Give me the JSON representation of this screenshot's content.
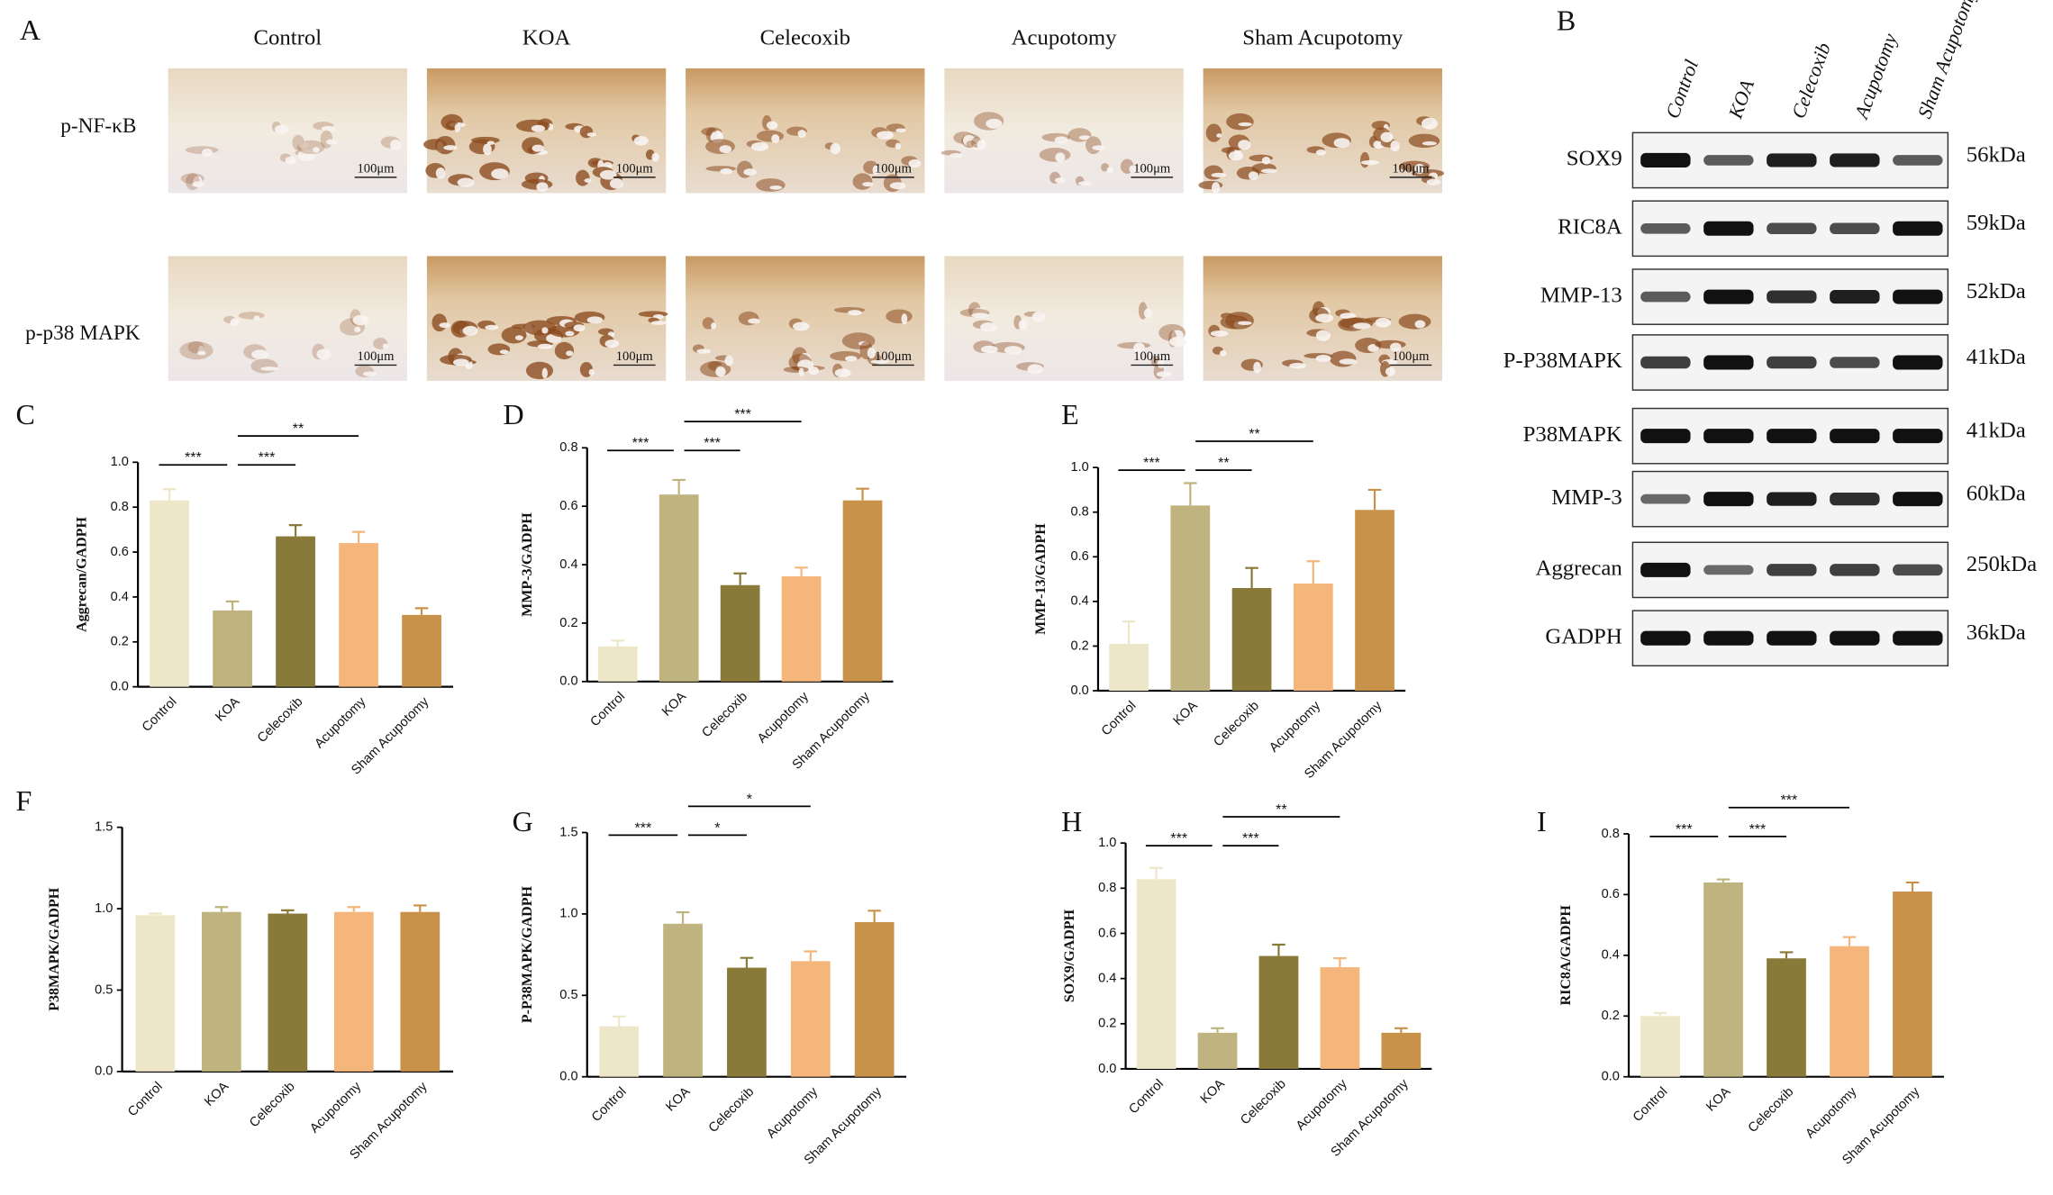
{
  "histology": {
    "label": "A",
    "groups": [
      "Control",
      "KOA",
      "Celecoxib",
      "Acupotomy",
      "Sham Acupotomy"
    ],
    "stains": [
      "p-NF-κB",
      "p-p38  MAPK"
    ],
    "scale_bar": "100μm"
  },
  "blot": {
    "label": "B",
    "lanes": [
      "Control",
      "KOA",
      "Celecoxib",
      "Acupotomy",
      "Sham Acupotomy"
    ],
    "proteins": [
      {
        "name": "SOX9",
        "size": "56kDa"
      },
      {
        "name": "RIC8A",
        "size": "59kDa"
      },
      {
        "name": "MMP-13",
        "size": "52kDa"
      },
      {
        "name": "P-P38MAPK",
        "size": "41kDa"
      },
      {
        "name": "P38MAPK",
        "size": "41kDa"
      },
      {
        "name": "MMP-3",
        "size": "60kDa"
      },
      {
        "name": "Aggrecan",
        "size": "250kDa"
      },
      {
        "name": "GADPH",
        "size": "36kDa"
      }
    ]
  },
  "chart_data": [
    {
      "type": "bar",
      "panel": "C",
      "ylabel": "Aggrecan/GADPH",
      "categories": [
        "Control",
        "KOA",
        "Celecoxib",
        "Acupotomy",
        "Sham Acupotomy"
      ],
      "colors": [
        "#ede6c8",
        "#bfb47f",
        "#8a7a3a",
        "#f4b67a",
        "#c8924a"
      ],
      "values": [
        0.83,
        0.34,
        0.67,
        0.64,
        0.32
      ],
      "errors": [
        0.05,
        0.04,
        0.05,
        0.05,
        0.03
      ],
      "ylim": [
        0,
        1
      ],
      "yticks": [
        {
          "value": 0,
          "label": "0.0"
        },
        0.2,
        0.4,
        0.6,
        0.8,
        {
          "value": 1,
          "label": "1.0"
        }
      ],
      "annotations": [
        {
          "text": "***",
          "between": [
            "Control",
            "KOA"
          ]
        },
        {
          "text": "***",
          "between": [
            "KOA",
            "Celecoxib"
          ]
        },
        {
          "text": "**",
          "between": [
            "KOA",
            "Acupotomy"
          ]
        }
      ]
    },
    {
      "type": "bar",
      "panel": "D",
      "ylabel": "MMP-3/GADPH",
      "categories": [
        "Control",
        "KOA",
        "Celecoxib",
        "Acupotomy",
        "Sham Acupotomy"
      ],
      "colors": [
        "#ede6c8",
        "#bfb47f",
        "#8a7a3a",
        "#f4b67a",
        "#c8924a"
      ],
      "values": [
        0.12,
        0.64,
        0.33,
        0.36,
        0.62
      ],
      "errors": [
        0.02,
        0.05,
        0.04,
        0.03,
        0.04
      ],
      "ylim": [
        0,
        0.8
      ],
      "yticks": [
        {
          "value": 0,
          "label": "0.0"
        },
        0.2,
        0.4,
        0.6,
        0.8
      ],
      "annotations": [
        {
          "text": "***",
          "between": [
            "Control",
            "KOA"
          ]
        },
        {
          "text": "***",
          "between": [
            "KOA",
            "Celecoxib"
          ]
        },
        {
          "text": "***",
          "between": [
            "KOA",
            "Acupotomy"
          ]
        }
      ]
    },
    {
      "type": "bar",
      "panel": "E",
      "ylabel": "MMP-13/GADPH",
      "categories": [
        "Control",
        "KOA",
        "Celecoxib",
        "Acupotomy",
        "Sham Acupotomy"
      ],
      "colors": [
        "#ede6c8",
        "#bfb47f",
        "#8a7a3a",
        "#f4b67a",
        "#c8924a"
      ],
      "values": [
        0.21,
        0.83,
        0.46,
        0.48,
        0.81
      ],
      "errors": [
        0.1,
        0.1,
        0.09,
        0.1,
        0.09
      ],
      "ylim": [
        0,
        1
      ],
      "yticks": [
        {
          "value": 0,
          "label": "0.0"
        },
        0.2,
        0.4,
        0.6,
        0.8,
        {
          "value": 1,
          "label": "1.0"
        }
      ],
      "annotations": [
        {
          "text": "***",
          "between": [
            "Control",
            "KOA"
          ]
        },
        {
          "text": "**",
          "between": [
            "KOA",
            "Celecoxib"
          ]
        },
        {
          "text": "**",
          "between": [
            "KOA",
            "Acupotomy"
          ]
        }
      ]
    },
    {
      "type": "bar",
      "panel": "F",
      "ylabel": "P38MAPK/GADPH",
      "categories": [
        "Control",
        "KOA",
        "Celecoxib",
        "Acupotomy",
        "Sham Acupotomy"
      ],
      "colors": [
        "#ede6c8",
        "#bfb47f",
        "#8a7a3a",
        "#f4b67a",
        "#c8924a"
      ],
      "values": [
        0.96,
        0.98,
        0.97,
        0.98,
        0.98
      ],
      "errors": [
        0.01,
        0.03,
        0.02,
        0.03,
        0.04
      ],
      "ylim": [
        0,
        1.5
      ],
      "yticks": [
        {
          "value": 0,
          "label": "0.0"
        },
        0.5,
        {
          "value": 1,
          "label": "1.0"
        },
        1.5
      ],
      "annotations": []
    },
    {
      "type": "bar",
      "panel": "G",
      "ylabel": "P-P38MAPK/GADPH",
      "categories": [
        "Control",
        "KOA",
        "Celecoxib",
        "Acupotomy",
        "Sham Acupotomy"
      ],
      "colors": [
        "#ede6c8",
        "#bfb47f",
        "#8a7a3a",
        "#f4b67a",
        "#c8924a"
      ],
      "values": [
        0.31,
        0.94,
        0.67,
        0.71,
        0.95
      ],
      "errors": [
        0.06,
        0.07,
        0.06,
        0.06,
        0.07
      ],
      "ylim": [
        0,
        1.5
      ],
      "yticks": [
        {
          "value": 0,
          "label": "0.0"
        },
        0.5,
        {
          "value": 1,
          "label": "1.0"
        },
        1.5
      ],
      "annotations": [
        {
          "text": "***",
          "between": [
            "Control",
            "KOA"
          ]
        },
        {
          "text": "*",
          "between": [
            "KOA",
            "Celecoxib"
          ]
        },
        {
          "text": "*",
          "between": [
            "KOA",
            "Acupotomy"
          ]
        }
      ]
    },
    {
      "type": "bar",
      "panel": "H",
      "ylabel": "SOX9/GADPH",
      "categories": [
        "Control",
        "KOA",
        "Celecoxib",
        "Acupotomy",
        "Sham Acupotomy"
      ],
      "colors": [
        "#ede6c8",
        "#bfb47f",
        "#8a7a3a",
        "#f4b67a",
        "#c8924a"
      ],
      "values": [
        0.84,
        0.16,
        0.5,
        0.45,
        0.16
      ],
      "errors": [
        0.05,
        0.02,
        0.05,
        0.04,
        0.02
      ],
      "ylim": [
        0,
        1
      ],
      "yticks": [
        {
          "value": 0,
          "label": "0.0"
        },
        0.2,
        0.4,
        0.6,
        0.8,
        {
          "value": 1,
          "label": "1.0"
        }
      ],
      "annotations": [
        {
          "text": "***",
          "between": [
            "Control",
            "KOA"
          ]
        },
        {
          "text": "***",
          "between": [
            "KOA",
            "Celecoxib"
          ]
        },
        {
          "text": "**",
          "between": [
            "KOA",
            "Acupotomy"
          ]
        }
      ]
    },
    {
      "type": "bar",
      "panel": "I",
      "ylabel": "RIC8A/GADPH",
      "categories": [
        "Control",
        "KOA",
        "Celecoxib",
        "Acupotomy",
        "Sham Acupotomy"
      ],
      "colors": [
        "#ede6c8",
        "#bfb47f",
        "#8a7a3a",
        "#f4b67a",
        "#c8924a"
      ],
      "values": [
        0.2,
        0.64,
        0.39,
        0.43,
        0.61
      ],
      "errors": [
        0.01,
        0.01,
        0.02,
        0.03,
        0.03
      ],
      "ylim": [
        0,
        0.8
      ],
      "yticks": [
        {
          "value": 0,
          "label": "0.0"
        },
        0.2,
        0.4,
        0.6,
        0.8
      ],
      "annotations": [
        {
          "text": "***",
          "between": [
            "Control",
            "KOA"
          ]
        },
        {
          "text": "***",
          "between": [
            "KOA",
            "Celecoxib"
          ]
        },
        {
          "text": "***",
          "between": [
            "KOA",
            "Acupotomy"
          ]
        }
      ]
    }
  ]
}
